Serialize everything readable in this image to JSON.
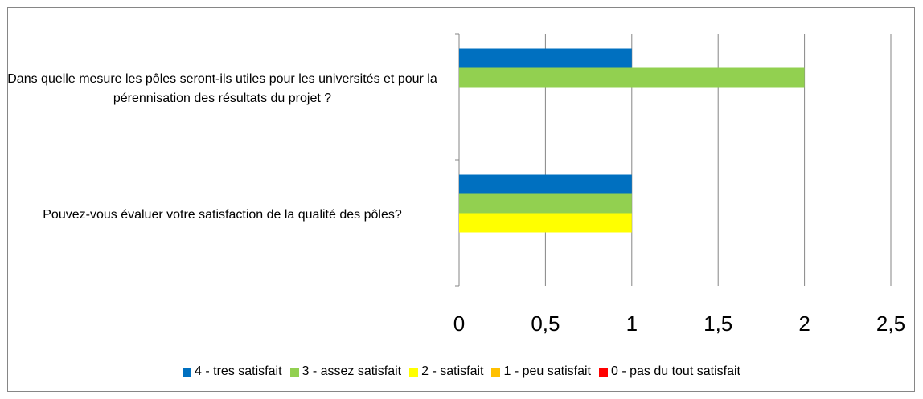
{
  "chart_data": {
    "type": "bar",
    "orientation": "horizontal",
    "categories": [
      "Dans quelle mesure les pôles seront-ils utiles pour les universités et pour la pérennisation des résultats du projet ?",
      "Pouvez-vous évaluer votre satisfaction de la qualité des pôles?"
    ],
    "series": [
      {
        "name": "4 - tres satisfait",
        "color": "#0070c0",
        "values": [
          1,
          1
        ]
      },
      {
        "name": "3 - assez satisfait",
        "color": "#92d050",
        "values": [
          2,
          1
        ]
      },
      {
        "name": "2 - satisfait",
        "color": "#ffff00",
        "values": [
          0,
          1
        ]
      },
      {
        "name": "1 - peu satisfait",
        "color": "#ffc000",
        "values": [
          0,
          0
        ]
      },
      {
        "name": "0 - pas du tout satisfait",
        "color": "#ff0000",
        "values": [
          0,
          0
        ]
      }
    ],
    "xlim": [
      0,
      2.5
    ],
    "xticks": [
      0,
      {
        "value": 0.5,
        "label": "0,5"
      },
      1,
      {
        "value": 1.5,
        "label": "1,5"
      },
      2,
      {
        "value": 2.5,
        "label": "2,5"
      }
    ],
    "grid": true,
    "legend": "bottom"
  }
}
